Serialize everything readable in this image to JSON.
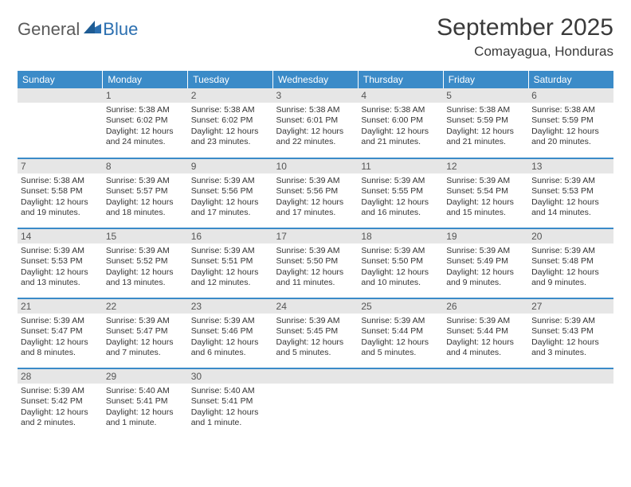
{
  "logo": {
    "general": "General",
    "blue": "Blue"
  },
  "title": "September 2025",
  "location": "Comayagua, Honduras",
  "colors": {
    "header_bg": "#3b8bc8",
    "header_text": "#ffffff",
    "daynum_bg": "#e6e6e6",
    "daynum_text": "#555555",
    "body_text": "#333333",
    "row_divider": "#3b8bc8",
    "logo_gray": "#5a5a5a",
    "logo_blue": "#2b6fb0",
    "page_bg": "#ffffff"
  },
  "typography": {
    "title_fontsize": 30,
    "location_fontsize": 17,
    "dayheader_fontsize": 12,
    "daynum_fontsize": 12,
    "cell_fontsize": 10.5,
    "logo_fontsize": 22
  },
  "day_headers": [
    "Sunday",
    "Monday",
    "Tuesday",
    "Wednesday",
    "Thursday",
    "Friday",
    "Saturday"
  ],
  "weeks": [
    [
      {
        "n": "",
        "empty": true
      },
      {
        "n": "1",
        "sr": "Sunrise: 5:38 AM",
        "ss": "Sunset: 6:02 PM",
        "dl": "Daylight: 12 hours and 24 minutes."
      },
      {
        "n": "2",
        "sr": "Sunrise: 5:38 AM",
        "ss": "Sunset: 6:02 PM",
        "dl": "Daylight: 12 hours and 23 minutes."
      },
      {
        "n": "3",
        "sr": "Sunrise: 5:38 AM",
        "ss": "Sunset: 6:01 PM",
        "dl": "Daylight: 12 hours and 22 minutes."
      },
      {
        "n": "4",
        "sr": "Sunrise: 5:38 AM",
        "ss": "Sunset: 6:00 PM",
        "dl": "Daylight: 12 hours and 21 minutes."
      },
      {
        "n": "5",
        "sr": "Sunrise: 5:38 AM",
        "ss": "Sunset: 5:59 PM",
        "dl": "Daylight: 12 hours and 21 minutes."
      },
      {
        "n": "6",
        "sr": "Sunrise: 5:38 AM",
        "ss": "Sunset: 5:59 PM",
        "dl": "Daylight: 12 hours and 20 minutes."
      }
    ],
    [
      {
        "n": "7",
        "sr": "Sunrise: 5:38 AM",
        "ss": "Sunset: 5:58 PM",
        "dl": "Daylight: 12 hours and 19 minutes."
      },
      {
        "n": "8",
        "sr": "Sunrise: 5:39 AM",
        "ss": "Sunset: 5:57 PM",
        "dl": "Daylight: 12 hours and 18 minutes."
      },
      {
        "n": "9",
        "sr": "Sunrise: 5:39 AM",
        "ss": "Sunset: 5:56 PM",
        "dl": "Daylight: 12 hours and 17 minutes."
      },
      {
        "n": "10",
        "sr": "Sunrise: 5:39 AM",
        "ss": "Sunset: 5:56 PM",
        "dl": "Daylight: 12 hours and 17 minutes."
      },
      {
        "n": "11",
        "sr": "Sunrise: 5:39 AM",
        "ss": "Sunset: 5:55 PM",
        "dl": "Daylight: 12 hours and 16 minutes."
      },
      {
        "n": "12",
        "sr": "Sunrise: 5:39 AM",
        "ss": "Sunset: 5:54 PM",
        "dl": "Daylight: 12 hours and 15 minutes."
      },
      {
        "n": "13",
        "sr": "Sunrise: 5:39 AM",
        "ss": "Sunset: 5:53 PM",
        "dl": "Daylight: 12 hours and 14 minutes."
      }
    ],
    [
      {
        "n": "14",
        "sr": "Sunrise: 5:39 AM",
        "ss": "Sunset: 5:53 PM",
        "dl": "Daylight: 12 hours and 13 minutes."
      },
      {
        "n": "15",
        "sr": "Sunrise: 5:39 AM",
        "ss": "Sunset: 5:52 PM",
        "dl": "Daylight: 12 hours and 13 minutes."
      },
      {
        "n": "16",
        "sr": "Sunrise: 5:39 AM",
        "ss": "Sunset: 5:51 PM",
        "dl": "Daylight: 12 hours and 12 minutes."
      },
      {
        "n": "17",
        "sr": "Sunrise: 5:39 AM",
        "ss": "Sunset: 5:50 PM",
        "dl": "Daylight: 12 hours and 11 minutes."
      },
      {
        "n": "18",
        "sr": "Sunrise: 5:39 AM",
        "ss": "Sunset: 5:50 PM",
        "dl": "Daylight: 12 hours and 10 minutes."
      },
      {
        "n": "19",
        "sr": "Sunrise: 5:39 AM",
        "ss": "Sunset: 5:49 PM",
        "dl": "Daylight: 12 hours and 9 minutes."
      },
      {
        "n": "20",
        "sr": "Sunrise: 5:39 AM",
        "ss": "Sunset: 5:48 PM",
        "dl": "Daylight: 12 hours and 9 minutes."
      }
    ],
    [
      {
        "n": "21",
        "sr": "Sunrise: 5:39 AM",
        "ss": "Sunset: 5:47 PM",
        "dl": "Daylight: 12 hours and 8 minutes."
      },
      {
        "n": "22",
        "sr": "Sunrise: 5:39 AM",
        "ss": "Sunset: 5:47 PM",
        "dl": "Daylight: 12 hours and 7 minutes."
      },
      {
        "n": "23",
        "sr": "Sunrise: 5:39 AM",
        "ss": "Sunset: 5:46 PM",
        "dl": "Daylight: 12 hours and 6 minutes."
      },
      {
        "n": "24",
        "sr": "Sunrise: 5:39 AM",
        "ss": "Sunset: 5:45 PM",
        "dl": "Daylight: 12 hours and 5 minutes."
      },
      {
        "n": "25",
        "sr": "Sunrise: 5:39 AM",
        "ss": "Sunset: 5:44 PM",
        "dl": "Daylight: 12 hours and 5 minutes."
      },
      {
        "n": "26",
        "sr": "Sunrise: 5:39 AM",
        "ss": "Sunset: 5:44 PM",
        "dl": "Daylight: 12 hours and 4 minutes."
      },
      {
        "n": "27",
        "sr": "Sunrise: 5:39 AM",
        "ss": "Sunset: 5:43 PM",
        "dl": "Daylight: 12 hours and 3 minutes."
      }
    ],
    [
      {
        "n": "28",
        "sr": "Sunrise: 5:39 AM",
        "ss": "Sunset: 5:42 PM",
        "dl": "Daylight: 12 hours and 2 minutes."
      },
      {
        "n": "29",
        "sr": "Sunrise: 5:40 AM",
        "ss": "Sunset: 5:41 PM",
        "dl": "Daylight: 12 hours and 1 minute."
      },
      {
        "n": "30",
        "sr": "Sunrise: 5:40 AM",
        "ss": "Sunset: 5:41 PM",
        "dl": "Daylight: 12 hours and 1 minute."
      },
      {
        "n": "",
        "empty": true
      },
      {
        "n": "",
        "empty": true
      },
      {
        "n": "",
        "empty": true
      },
      {
        "n": "",
        "empty": true
      }
    ]
  ]
}
